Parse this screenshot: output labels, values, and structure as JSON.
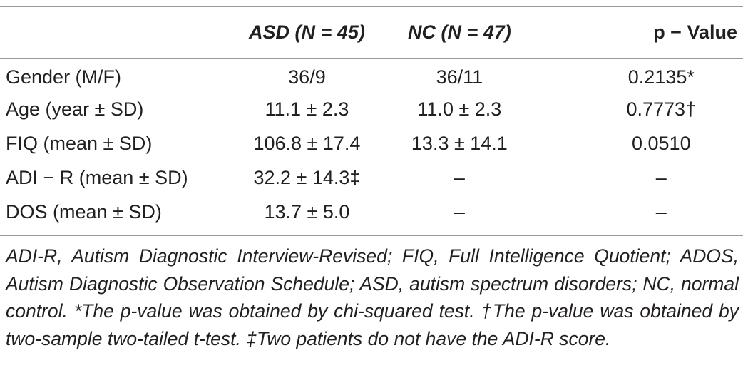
{
  "table": {
    "headers": {
      "asd": "ASD (N = 45)",
      "nc": "NC (N = 47)",
      "pvalue": "p − Value"
    },
    "rows": [
      {
        "label": "Gender (M/F)",
        "asd": "36/9",
        "nc": "36/11",
        "p": "0.2135*"
      },
      {
        "label": "Age (year ± SD)",
        "asd": "11.1 ± 2.3",
        "nc": "11.0 ± 2.3",
        "p": "0.7773†"
      },
      {
        "label": "FIQ (mean ± SD)",
        "asd": "106.8 ± 17.4",
        "nc": "13.3 ± 14.1",
        "p": "0.0510"
      },
      {
        "label": "ADI − R (mean ± SD)",
        "asd": "32.2 ± 14.3‡",
        "nc": "–",
        "p": "–"
      },
      {
        "label": "DOS (mean ± SD)",
        "asd": "13.7 ± 5.0",
        "nc": "–",
        "p": "–"
      }
    ]
  },
  "caption": "ADI-R, Autism Diagnostic Interview-Revised; FIQ, Full Intelligence Quotient; ADOS, Autism Diagnostic Observation Schedule; ASD, autism spectrum disorders; NC, normal control. *The p-value was obtained by chi-squared test. †The p-value was obtained by two-sample two-tailed t-test. ‡Two patients do not have the ADI-R score."
}
